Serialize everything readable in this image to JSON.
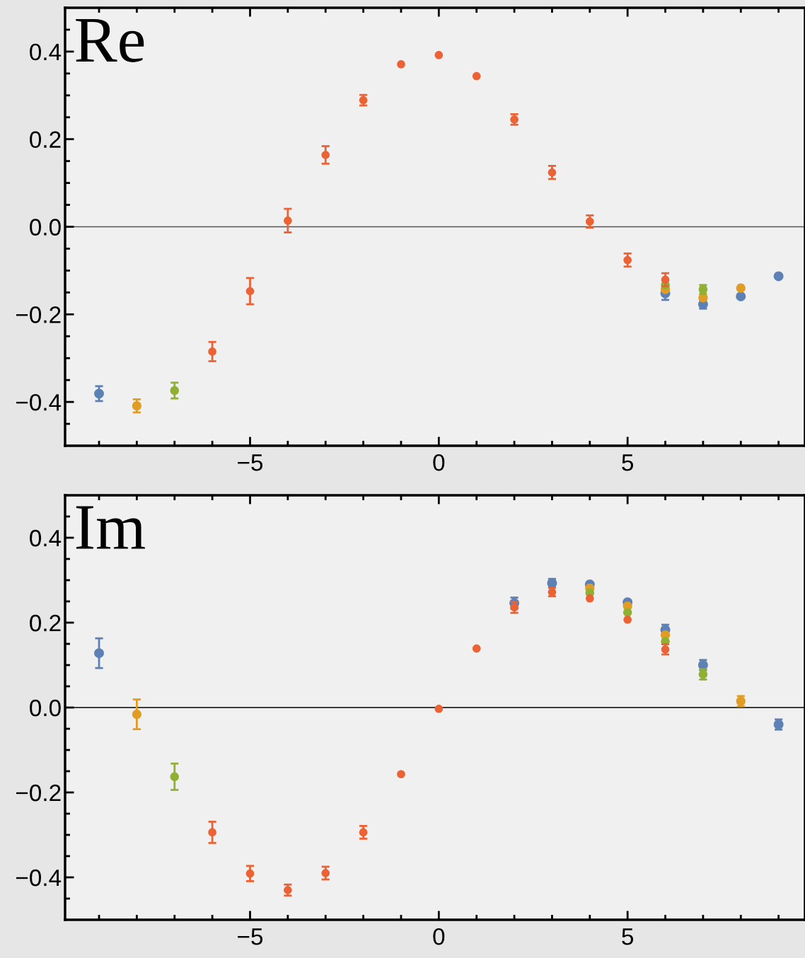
{
  "chart_data": [
    {
      "type": "scatter",
      "annotations": [
        "Re"
      ],
      "marker": "circle",
      "grid": false,
      "legend": false,
      "x": [
        -9,
        -8,
        -7,
        -6,
        -5,
        -4,
        -3,
        -2,
        -1,
        0,
        1,
        2,
        3,
        4,
        5,
        6,
        7,
        8,
        9
      ],
      "xlim": [
        -9.9,
        9.7
      ],
      "ylim": [
        -0.5,
        0.5
      ],
      "xticks": [
        {
          "value": -9,
          "label": null
        },
        {
          "value": -8,
          "label": null
        },
        {
          "value": -7,
          "label": null
        },
        {
          "value": -6,
          "label": null
        },
        {
          "value": -5,
          "label": "−5"
        },
        {
          "value": -4,
          "label": null
        },
        {
          "value": -3,
          "label": null
        },
        {
          "value": -2,
          "label": null
        },
        {
          "value": -1,
          "label": null
        },
        0,
        {
          "value": 1,
          "label": null
        },
        {
          "value": 2,
          "label": null
        },
        {
          "value": 3,
          "label": null
        },
        {
          "value": 4,
          "label": null
        },
        5,
        {
          "value": 6,
          "label": null
        },
        {
          "value": 7,
          "label": null
        },
        {
          "value": 8,
          "label": null
        },
        {
          "value": 9,
          "label": null
        }
      ],
      "yticks": [
        {
          "value": -0.45,
          "label": null
        },
        {
          "value": -0.4,
          "label": "−0.4"
        },
        {
          "value": -0.35,
          "label": null
        },
        {
          "value": -0.3,
          "label": null
        },
        {
          "value": -0.25,
          "label": null
        },
        {
          "value": -0.2,
          "label": "−0.2"
        },
        {
          "value": -0.15,
          "label": null
        },
        {
          "value": -0.1,
          "label": null
        },
        {
          "value": -0.05,
          "label": null
        },
        {
          "value": 0,
          "label": "0.0"
        },
        {
          "value": 0.05,
          "label": null
        },
        {
          "value": 0.1,
          "label": null
        },
        {
          "value": 0.15,
          "label": null
        },
        {
          "value": 0.2,
          "label": "0.2"
        },
        {
          "value": 0.25,
          "label": null
        },
        {
          "value": 0.3,
          "label": null
        },
        {
          "value": 0.35,
          "label": null
        },
        {
          "value": 0.4,
          "label": "0.4"
        },
        {
          "value": 0.45,
          "label": null
        }
      ],
      "ref_lines": [
        {
          "axis": "y",
          "value": 0,
          "color": "#555555"
        }
      ],
      "series": [
        {
          "color": "#5e81b5",
          "values": [
            -0.381,
            null,
            null,
            null,
            null,
            null,
            null,
            null,
            null,
            null,
            null,
            null,
            null,
            null,
            null,
            -0.152,
            -0.177,
            -0.159,
            -0.113
          ],
          "errors": [
            0.017,
            null,
            null,
            null,
            null,
            null,
            null,
            null,
            null,
            null,
            null,
            null,
            null,
            null,
            null,
            0.015,
            0.01,
            null,
            null
          ]
        },
        {
          "color": "#e19c24",
          "values": [
            null,
            -0.409,
            null,
            null,
            null,
            null,
            null,
            null,
            null,
            null,
            null,
            null,
            null,
            null,
            null,
            -0.143,
            -0.162,
            -0.14,
            null
          ],
          "errors": [
            null,
            0.015,
            null,
            null,
            null,
            null,
            null,
            null,
            null,
            null,
            null,
            null,
            null,
            null,
            null,
            null,
            null,
            null,
            null
          ]
        },
        {
          "color": "#8fb032",
          "values": [
            null,
            null,
            -0.374,
            null,
            null,
            null,
            null,
            null,
            null,
            null,
            null,
            null,
            null,
            null,
            null,
            -0.133,
            -0.143,
            null,
            null
          ],
          "errors": [
            null,
            null,
            0.018,
            null,
            null,
            null,
            null,
            null,
            null,
            null,
            null,
            null,
            null,
            null,
            null,
            null,
            0.01,
            null,
            null
          ]
        },
        {
          "color": "#eb6235",
          "values": [
            null,
            null,
            null,
            -0.285,
            -0.147,
            0.014,
            0.164,
            0.289,
            0.371,
            0.392,
            0.344,
            0.245,
            0.124,
            0.012,
            -0.076,
            -0.121,
            null,
            null,
            null
          ],
          "errors": [
            null,
            null,
            null,
            0.022,
            0.03,
            0.027,
            0.02,
            0.012,
            null,
            null,
            null,
            0.012,
            0.015,
            0.014,
            0.015,
            0.015,
            null,
            null,
            null
          ]
        }
      ]
    },
    {
      "type": "scatter",
      "annotations": [
        "Im"
      ],
      "marker": "circle",
      "grid": false,
      "legend": false,
      "x": [
        -9,
        -8,
        -7,
        -6,
        -5,
        -4,
        -3,
        -2,
        -1,
        0,
        1,
        2,
        3,
        4,
        5,
        6,
        7,
        8,
        9
      ],
      "xlim": [
        -9.9,
        9.7
      ],
      "ylim": [
        -0.5,
        0.5
      ],
      "xticks": [
        {
          "value": -9,
          "label": null
        },
        {
          "value": -8,
          "label": null
        },
        {
          "value": -7,
          "label": null
        },
        {
          "value": -6,
          "label": null
        },
        {
          "value": -5,
          "label": "−5"
        },
        {
          "value": -4,
          "label": null
        },
        {
          "value": -3,
          "label": null
        },
        {
          "value": -2,
          "label": null
        },
        {
          "value": -1,
          "label": null
        },
        0,
        {
          "value": 1,
          "label": null
        },
        {
          "value": 2,
          "label": null
        },
        {
          "value": 3,
          "label": null
        },
        {
          "value": 4,
          "label": null
        },
        5,
        {
          "value": 6,
          "label": null
        },
        {
          "value": 7,
          "label": null
        },
        {
          "value": 8,
          "label": null
        },
        {
          "value": 9,
          "label": null
        }
      ],
      "yticks": [
        {
          "value": -0.45,
          "label": null
        },
        {
          "value": -0.4,
          "label": "−0.4"
        },
        {
          "value": -0.35,
          "label": null
        },
        {
          "value": -0.3,
          "label": null
        },
        {
          "value": -0.25,
          "label": null
        },
        {
          "value": -0.2,
          "label": "−0.2"
        },
        {
          "value": -0.15,
          "label": null
        },
        {
          "value": -0.1,
          "label": null
        },
        {
          "value": -0.05,
          "label": null
        },
        {
          "value": 0,
          "label": "0.0"
        },
        {
          "value": 0.05,
          "label": null
        },
        {
          "value": 0.1,
          "label": null
        },
        {
          "value": 0.15,
          "label": null
        },
        {
          "value": 0.2,
          "label": "0.2"
        },
        {
          "value": 0.25,
          "label": null
        },
        {
          "value": 0.3,
          "label": null
        },
        {
          "value": 0.35,
          "label": null
        },
        {
          "value": 0.4,
          "label": "0.4"
        },
        {
          "value": 0.45,
          "label": null
        }
      ],
      "ref_lines": [
        {
          "axis": "y",
          "value": 0,
          "color": "#000000"
        }
      ],
      "series": [
        {
          "color": "#5e81b5",
          "values": [
            0.128,
            null,
            null,
            null,
            null,
            null,
            null,
            null,
            null,
            null,
            null,
            0.246,
            0.293,
            0.29,
            0.248,
            0.183,
            0.1,
            null,
            -0.04
          ],
          "errors": [
            0.035,
            null,
            null,
            null,
            null,
            null,
            null,
            null,
            null,
            null,
            null,
            0.013,
            0.01,
            null,
            null,
            0.012,
            0.012,
            null,
            0.012
          ]
        },
        {
          "color": "#e19c24",
          "values": [
            null,
            -0.016,
            null,
            null,
            null,
            null,
            null,
            null,
            null,
            null,
            null,
            null,
            null,
            0.281,
            0.239,
            0.171,
            null,
            0.015,
            null
          ],
          "errors": [
            null,
            0.035,
            null,
            null,
            null,
            null,
            null,
            null,
            null,
            null,
            null,
            null,
            null,
            null,
            null,
            null,
            null,
            0.012,
            null
          ]
        },
        {
          "color": "#8fb032",
          "values": [
            null,
            null,
            -0.163,
            null,
            null,
            null,
            null,
            null,
            null,
            null,
            null,
            null,
            null,
            0.27,
            0.224,
            0.156,
            0.078,
            null,
            null
          ],
          "errors": [
            null,
            null,
            0.031,
            null,
            null,
            null,
            null,
            null,
            null,
            null,
            null,
            null,
            null,
            null,
            null,
            null,
            0.012,
            null,
            null
          ]
        },
        {
          "color": "#eb6235",
          "values": [
            null,
            null,
            null,
            -0.294,
            -0.391,
            -0.43,
            -0.39,
            -0.294,
            -0.157,
            -0.003,
            0.139,
            0.236,
            0.272,
            0.257,
            0.207,
            0.137,
            null,
            null,
            null
          ],
          "errors": [
            null,
            null,
            null,
            0.025,
            0.018,
            0.013,
            0.015,
            0.015,
            null,
            null,
            null,
            0.013,
            0.01,
            null,
            null,
            0.012,
            null,
            null,
            null
          ]
        }
      ]
    }
  ]
}
